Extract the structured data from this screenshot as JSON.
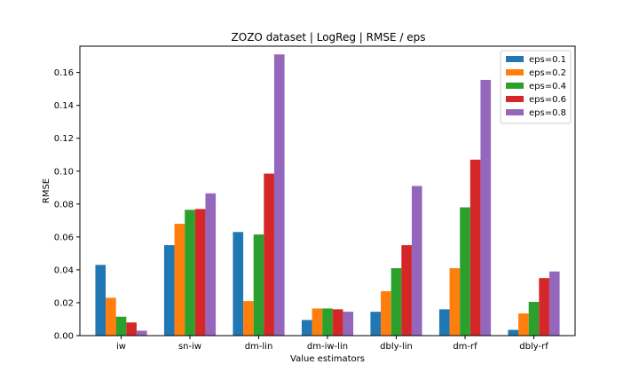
{
  "chart_data": {
    "type": "bar",
    "title": "ZOZO dataset | LogReg | RMSE / eps",
    "xlabel": "Value estimators",
    "ylabel": "RMSE",
    "ylim": [
      0,
      0.176
    ],
    "yticks": [
      0.0,
      0.02,
      0.04,
      0.06,
      0.08,
      0.1,
      0.12,
      0.14,
      0.16
    ],
    "ytick_labels": [
      "0.00",
      "0.02",
      "0.04",
      "0.06",
      "0.08",
      "0.10",
      "0.12",
      "0.14",
      "0.16"
    ],
    "categories": [
      "iw",
      "sn-iw",
      "dm-lin",
      "dm-iw-lin",
      "dbly-lin",
      "dm-rf",
      "dbly-rf"
    ],
    "grid": false,
    "legend_position": "top-right",
    "series": [
      {
        "name": "eps=0.1",
        "color": "#1f77b4",
        "values": [
          0.043,
          0.055,
          0.063,
          0.0095,
          0.0145,
          0.016,
          0.0035
        ]
      },
      {
        "name": "eps=0.2",
        "color": "#ff7f0e",
        "values": [
          0.023,
          0.068,
          0.021,
          0.0165,
          0.027,
          0.041,
          0.0135
        ]
      },
      {
        "name": "eps=0.4",
        "color": "#2ca02c",
        "values": [
          0.0115,
          0.0765,
          0.0615,
          0.0165,
          0.041,
          0.078,
          0.0205
        ]
      },
      {
        "name": "eps=0.6",
        "color": "#d62728",
        "values": [
          0.008,
          0.077,
          0.0985,
          0.016,
          0.055,
          0.107,
          0.035
        ]
      },
      {
        "name": "eps=0.8",
        "color": "#9467bd",
        "values": [
          0.003,
          0.0865,
          0.171,
          0.0145,
          0.091,
          0.1555,
          0.039
        ]
      }
    ]
  }
}
